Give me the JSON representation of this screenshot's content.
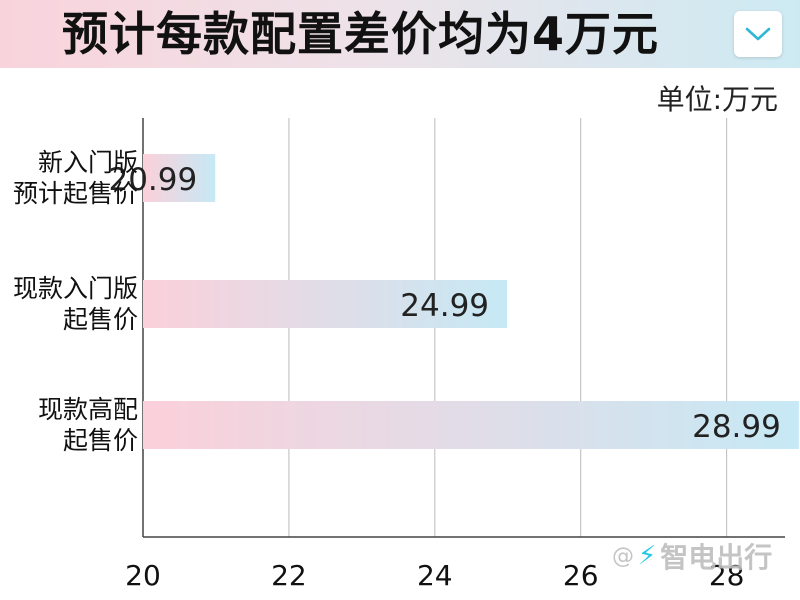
{
  "header": {
    "title": "预计每款配置差价均为4万元",
    "dropdown_icon": "chevron-down-icon"
  },
  "watermark": {
    "at": "@",
    "bolt_icon": "lightning-icon",
    "text": "智电出行"
  },
  "colors": {
    "bar_start": "#fbd0da",
    "bar_end": "#c6e9f5",
    "grid": "#bbbbbb",
    "accent": "#2fb8d6"
  },
  "chart_data": {
    "type": "bar",
    "orientation": "horizontal",
    "unit_label": "单位:万元",
    "categories": [
      [
        "新入门版",
        "预计起售价"
      ],
      [
        "现款入门版",
        "起售价"
      ],
      [
        "现款高配",
        "起售价"
      ]
    ],
    "values": [
      20.99,
      24.99,
      28.99
    ],
    "data_labels": [
      "20.99",
      "24.99",
      "28.99"
    ],
    "xlim": [
      20,
      28.8
    ],
    "xticks": [
      20,
      22,
      24,
      26,
      28
    ],
    "xtick_labels": [
      "20",
      "22",
      "24",
      "26",
      "28"
    ],
    "grid": true
  }
}
